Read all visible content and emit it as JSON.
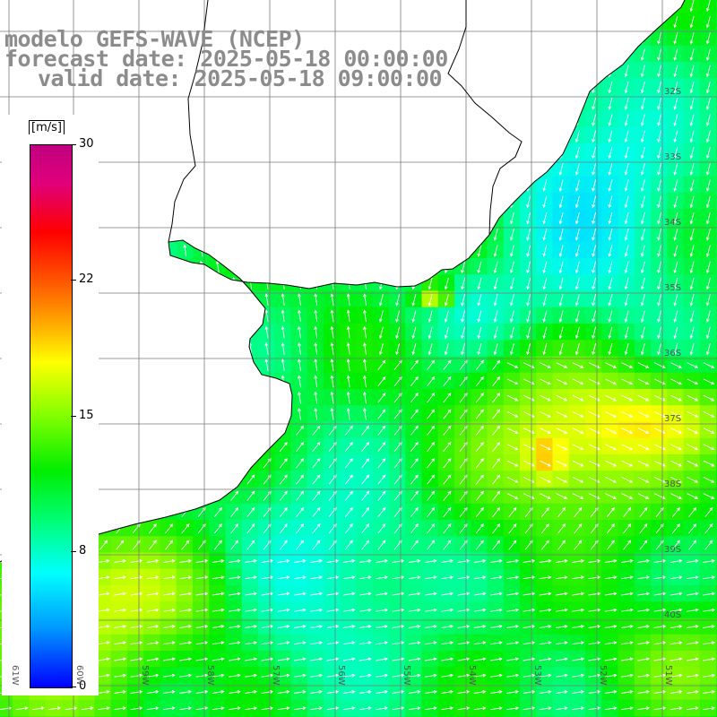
{
  "title": {
    "line1": "modelo GEFS-WAVE (NCEP)",
    "line2": "forecast date: 2025-05-18 00:00:00",
    "line3": "valid date: 2025-05-18 09:00:00"
  },
  "colorbar": {
    "units": "[m/s]",
    "min": 0,
    "max": 30,
    "ticks": [
      {
        "value": 30,
        "label": "30"
      },
      {
        "value": 22.5,
        "label": "22"
      },
      {
        "value": 15,
        "label": "15"
      },
      {
        "value": 7.5,
        "label": "8"
      },
      {
        "value": 0,
        "label": "0"
      }
    ]
  },
  "map": {
    "projection": "lat-lon",
    "lon_range": [
      -61.5,
      -50.5
    ],
    "lat_range": [
      -40.9,
      -30.6
    ],
    "grid": true,
    "lon_labels": [
      "61W",
      "60W",
      "59W",
      "58W",
      "57W",
      "56W",
      "55W",
      "54W",
      "53W",
      "52W",
      "51W"
    ],
    "lat_labels": [
      "32S",
      "33S",
      "34S",
      "35S",
      "36S",
      "37S",
      "38S",
      "39S",
      "40S"
    ],
    "colors": {
      "land": "#ffffff",
      "coastline": "#000000",
      "grid": "#808080",
      "arrows": "#ffffff"
    }
  }
}
